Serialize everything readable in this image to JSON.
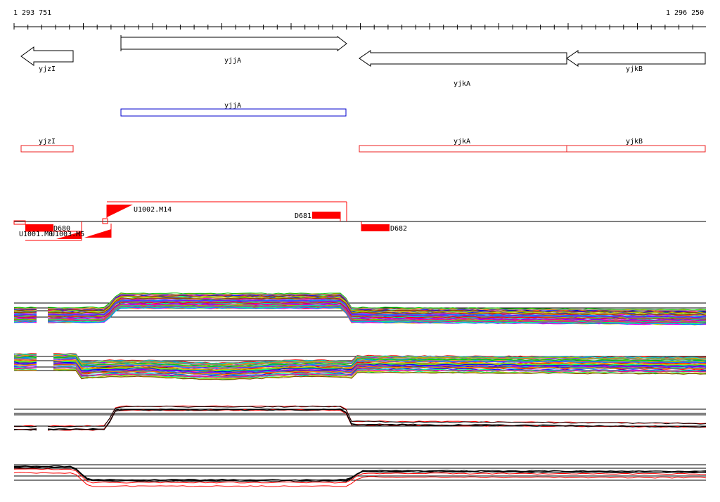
{
  "ruler": {
    "start": "1 293 751",
    "end": "1 296 250"
  },
  "genes": [
    {
      "id": "yjzI",
      "label": "yjzI",
      "strand": "-"
    },
    {
      "id": "yjjA",
      "label": "yjjA",
      "strand": "+"
    },
    {
      "id": "yjkA",
      "label": "yjkA",
      "strand": "-"
    },
    {
      "id": "yjkB",
      "label": "yjkB",
      "strand": "-"
    }
  ],
  "track_blue": {
    "label": "yjjA",
    "color": "#0000cc"
  },
  "track_red": {
    "labels": [
      "yjzI",
      "yjkA",
      "yjkB"
    ],
    "color": "#ee2222"
  },
  "features": [
    {
      "id": "D680",
      "label": "D680"
    },
    {
      "id": "U1001.M0",
      "label": "U1001.M0"
    },
    {
      "id": "U1003.M5",
      "label": "U1003.M5"
    },
    {
      "id": "U1002.M14",
      "label": "U1002.M14"
    },
    {
      "id": "D681",
      "label": "D681"
    },
    {
      "id": "D682",
      "label": "D682"
    }
  ],
  "colors": {
    "feature": "#ff0000",
    "axis": "#000000"
  }
}
